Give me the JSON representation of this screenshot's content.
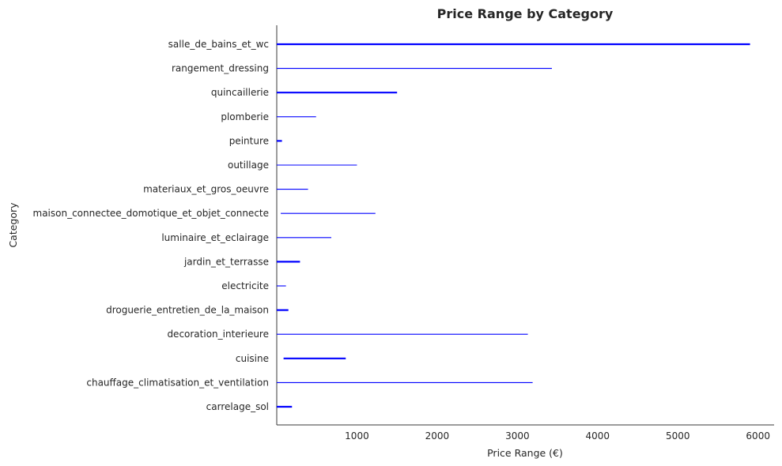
{
  "chart_data": {
    "type": "range",
    "title": "Price Range by Category",
    "xlabel": "Price Range (€)",
    "ylabel": "Category",
    "xlim": [
      0,
      6200
    ],
    "xticks": [
      1000,
      2000,
      3000,
      4000,
      5000,
      6000
    ],
    "grid": false,
    "series_color": "#0000ff",
    "categories": [
      "salle_de_bains_et_wc",
      "rangement_dressing",
      "quincaillerie",
      "plomberie",
      "peinture",
      "outillage",
      "materiaux_et_gros_oeuvre",
      "maison_connectee_domotique_et_objet_connecte",
      "luminaire_et_eclairage",
      "jardin_et_terrasse",
      "electricite",
      "droguerie_entretien_de_la_maison",
      "decoration_interieure",
      "cuisine",
      "chauffage_climatisation_et_ventilation",
      "carrelage_sol"
    ],
    "ranges": [
      {
        "min": 0,
        "max": 5900,
        "bold": true
      },
      {
        "min": 0,
        "max": 3430,
        "bold": false
      },
      {
        "min": 0,
        "max": 1500,
        "bold": true
      },
      {
        "min": 0,
        "max": 490,
        "bold": false
      },
      {
        "min": 0,
        "max": 65,
        "bold": true
      },
      {
        "min": 0,
        "max": 1000,
        "bold": false
      },
      {
        "min": 0,
        "max": 390,
        "bold": false
      },
      {
        "min": 50,
        "max": 1230,
        "bold": false
      },
      {
        "min": 0,
        "max": 680,
        "bold": false
      },
      {
        "min": 0,
        "max": 290,
        "bold": true
      },
      {
        "min": 0,
        "max": 115,
        "bold": false
      },
      {
        "min": 0,
        "max": 145,
        "bold": true
      },
      {
        "min": 0,
        "max": 3130,
        "bold": false
      },
      {
        "min": 85,
        "max": 860,
        "bold": true
      },
      {
        "min": 0,
        "max": 3190,
        "bold": false
      },
      {
        "min": 0,
        "max": 190,
        "bold": true
      }
    ]
  }
}
